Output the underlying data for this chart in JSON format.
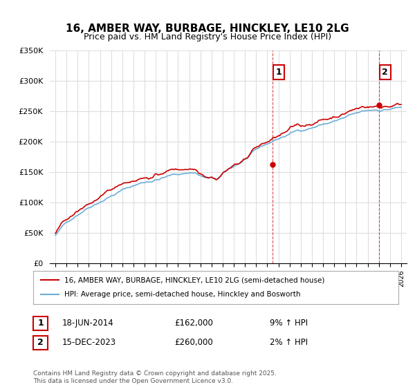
{
  "title": "16, AMBER WAY, BURBAGE, HINCKLEY, LE10 2LG",
  "subtitle": "Price paid vs. HM Land Registry's House Price Index (HPI)",
  "legend_line1": "16, AMBER WAY, BURBAGE, HINCKLEY, LE10 2LG (semi-detached house)",
  "legend_line2": "HPI: Average price, semi-detached house, Hinckley and Bosworth",
  "annotation1_label": "1",
  "annotation1_date": "18-JUN-2014",
  "annotation1_price": "£162,000",
  "annotation1_hpi": "9% ↑ HPI",
  "annotation2_label": "2",
  "annotation2_date": "15-DEC-2023",
  "annotation2_price": "£260,000",
  "annotation2_hpi": "2% ↑ HPI",
  "footer": "Contains HM Land Registry data © Crown copyright and database right 2025.\nThis data is licensed under the Open Government Licence v3.0.",
  "hpi_color": "#6baed6",
  "price_color": "#cc0000",
  "annotation_color": "#cc0000",
  "background_color": "#ffffff",
  "grid_color": "#dddddd",
  "ylim": [
    0,
    350000
  ],
  "yticks": [
    0,
    50000,
    100000,
    150000,
    200000,
    250000,
    300000,
    350000
  ],
  "start_year": 1995,
  "end_year": 2026
}
